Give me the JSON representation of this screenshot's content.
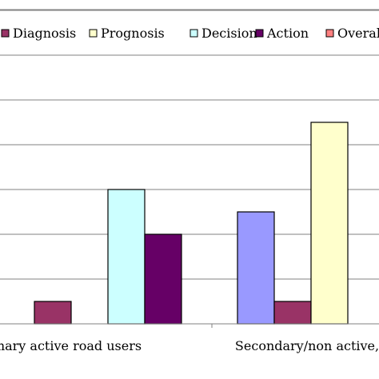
{
  "chart_data": {
    "type": "bar",
    "title": "",
    "xlabel": "",
    "ylabel": "",
    "ylim": [
      0,
      7
    ],
    "grid": true,
    "legend_position": "top",
    "categories": [
      "Primary active road users",
      "Secondary/non active,"
    ],
    "category_labels_visible": [
      "mary active road users",
      "Secondary/non active,"
    ],
    "series": [
      {
        "name": "",
        "color": "#9999ff",
        "values": [
          null,
          2.5
        ]
      },
      {
        "name": "Diagnosis",
        "color": "#993366",
        "values": [
          0.5,
          0.5
        ]
      },
      {
        "name": "Prognosis",
        "color": "#ffffcc",
        "values": [
          null,
          4.5
        ]
      },
      {
        "name": "Decision",
        "color": "#ccffff",
        "values": [
          3,
          null
        ]
      },
      {
        "name": "Action",
        "color": "#660066",
        "values": [
          2,
          null
        ]
      },
      {
        "name": "Overall",
        "color": "#ff8080",
        "values": [
          null,
          null
        ]
      }
    ],
    "legend_labels_visible": [
      "Diagnosis",
      "Prognosis",
      "Decision",
      "Action",
      "Overal"
    ]
  }
}
